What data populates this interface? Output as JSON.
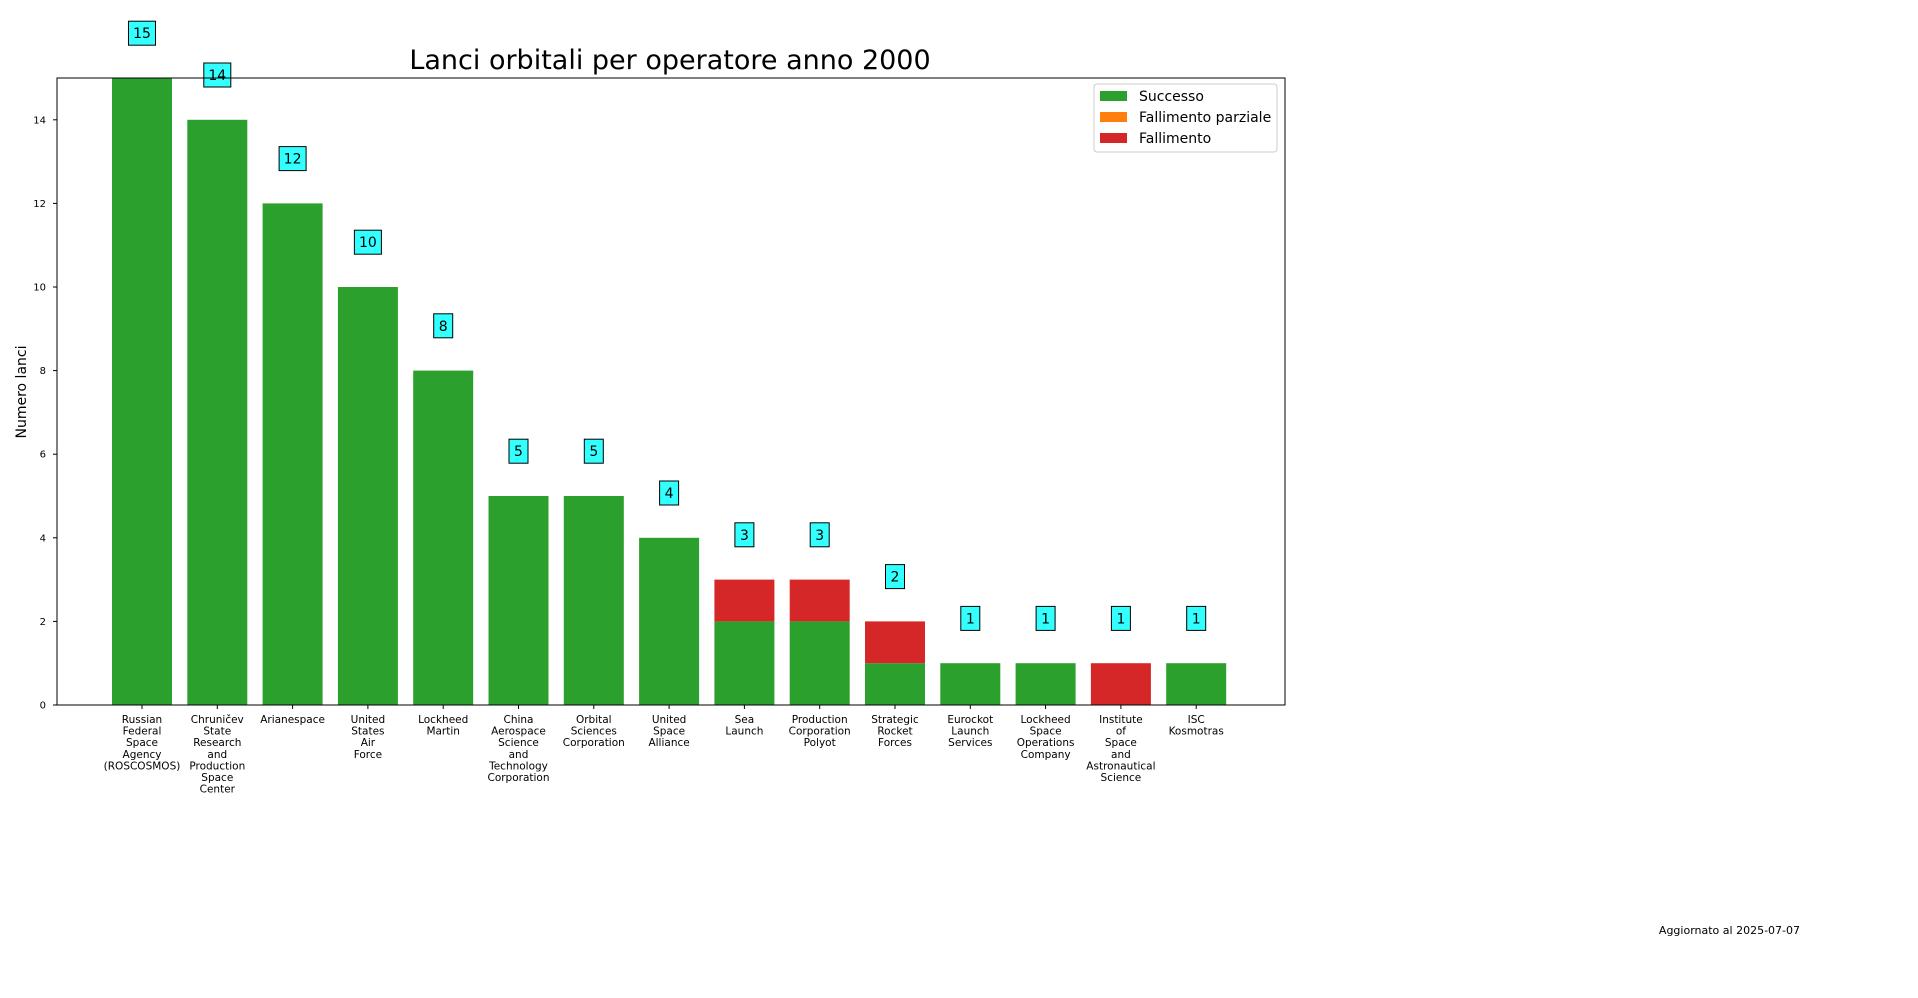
{
  "chart_data": {
    "type": "bar",
    "stacked": true,
    "title": "Lanci orbitali per operatore anno 2000",
    "xlabel": "",
    "ylabel": "Numero lanci",
    "ylim": [
      0,
      15
    ],
    "yticks": [
      0,
      2,
      4,
      6,
      8,
      10,
      12,
      14
    ],
    "grid": false,
    "legend_position": "top-right",
    "categories": [
      "Russian\nFederal\nSpace\nAgency\n(ROSCOSMOS)",
      "Chruničev\nState\nResearch\nand\nProduction\nSpace\nCenter",
      "Arianespace",
      "United\nStates\nAir\nForce",
      "Lockheed\nMartin",
      "China\nAerospace\nScience\nand\nTechnology\nCorporation",
      "Orbital\nSciences\nCorporation",
      "United\nSpace\nAlliance",
      "Sea\nLaunch",
      "Production\nCorporation\nPolyot",
      "Strategic\nRocket\nForces",
      "Eurockot\nLaunch\nServices",
      "Lockheed\nSpace\nOperations\nCompany",
      "Institute\nof\nSpace\nand\nAstronautical\nScience",
      "ISC\nKosmotras"
    ],
    "series": [
      {
        "name": "Successo",
        "color": "#2ca02c",
        "values": [
          15,
          14,
          12,
          10,
          8,
          5,
          5,
          4,
          2,
          2,
          1,
          1,
          1,
          0,
          1
        ]
      },
      {
        "name": "Fallimento parziale",
        "color": "#ff7f0e",
        "values": [
          0,
          0,
          0,
          0,
          0,
          0,
          0,
          0,
          0,
          0,
          0,
          0,
          0,
          0,
          0
        ]
      },
      {
        "name": "Fallimento",
        "color": "#d62728",
        "values": [
          0,
          0,
          0,
          0,
          0,
          0,
          0,
          0,
          1,
          1,
          1,
          0,
          0,
          1,
          0
        ]
      }
    ],
    "totals": [
      15,
      14,
      12,
      10,
      8,
      5,
      5,
      4,
      3,
      3,
      2,
      1,
      1,
      1,
      1
    ],
    "total_label_color": "#33ffff"
  },
  "footnote": "Aggiornato al 2025-07-07"
}
